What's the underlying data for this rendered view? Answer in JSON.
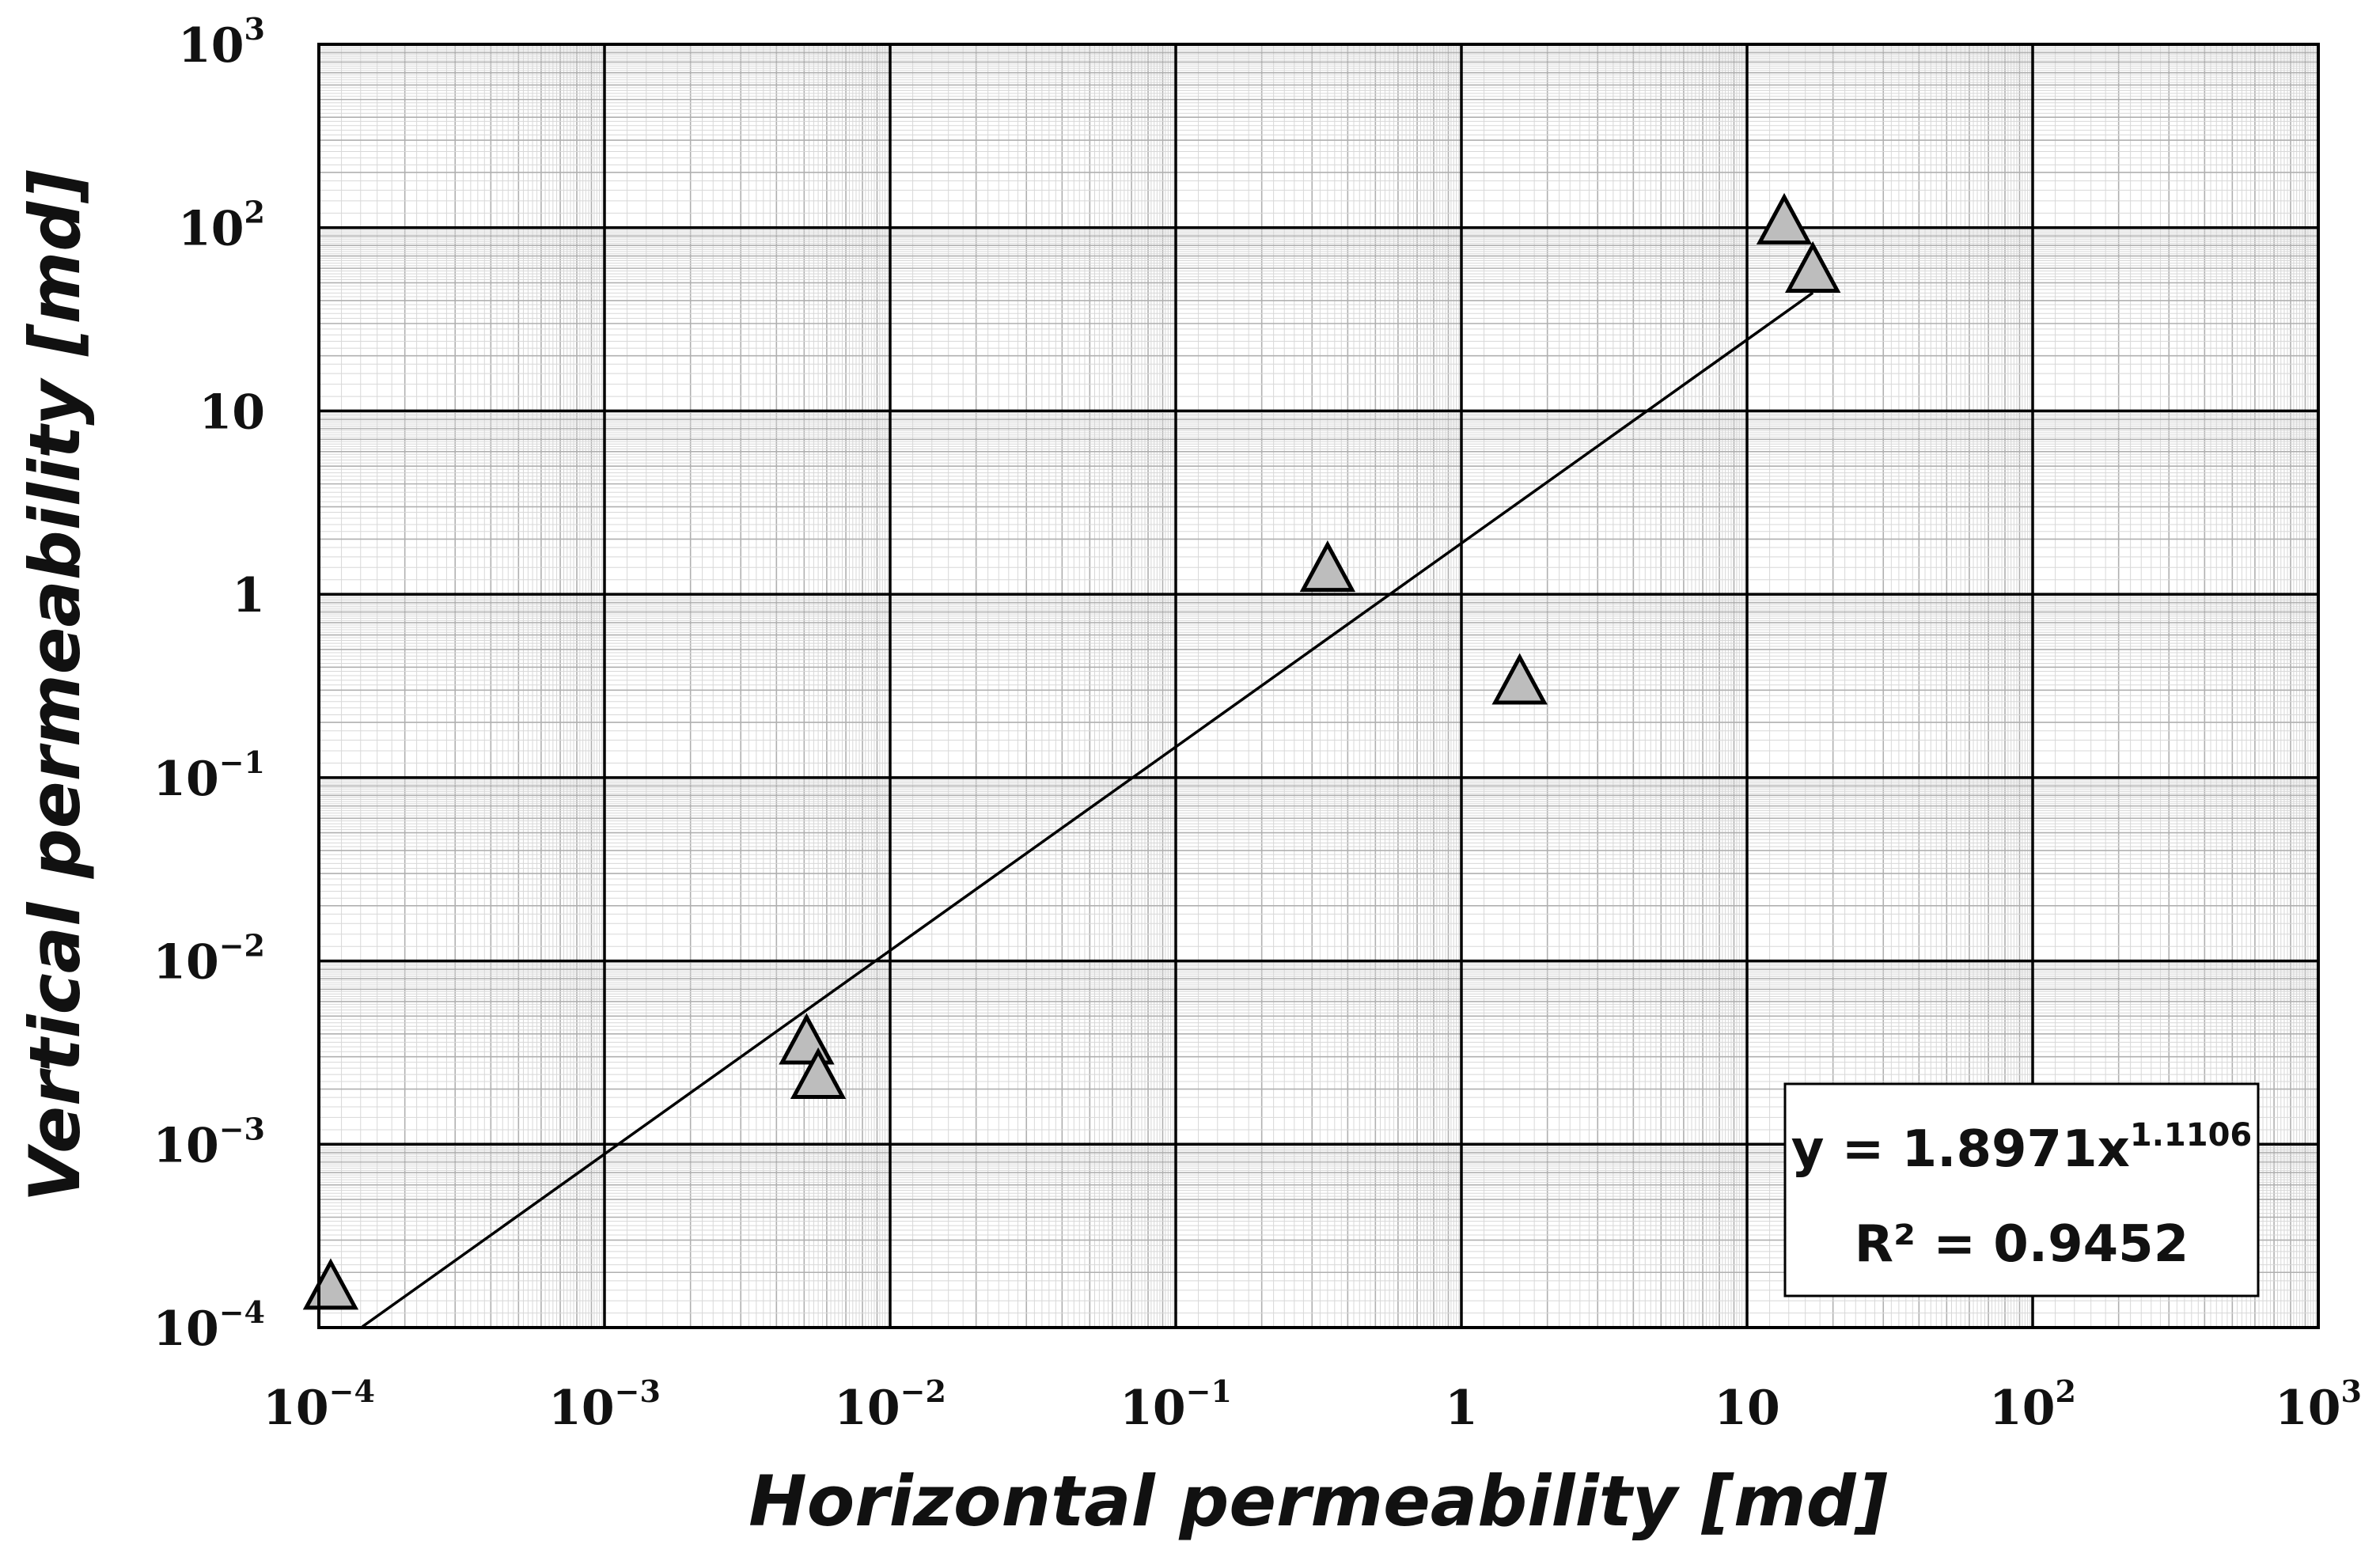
{
  "chart_data": {
    "type": "scatter",
    "title": "",
    "xlabel": "Horizontal permeability [md]",
    "ylabel": "Vertical permeability [md]",
    "xscale": "log",
    "yscale": "log",
    "xlim": [
      0.0001,
      1000
    ],
    "ylim": [
      0.0001,
      1000
    ],
    "grid": "major and minor",
    "x_tick_labels": [
      {
        "base": "10",
        "exp": "−4"
      },
      {
        "base": "10",
        "exp": "−3"
      },
      {
        "base": "10",
        "exp": "−2"
      },
      {
        "base": "10",
        "exp": "−1"
      },
      {
        "base": "1",
        "exp": ""
      },
      {
        "base": "10",
        "exp": ""
      },
      {
        "base": "10",
        "exp": "2"
      },
      {
        "base": "10",
        "exp": "3"
      }
    ],
    "y_tick_labels": [
      {
        "base": "10",
        "exp": "−4"
      },
      {
        "base": "10",
        "exp": "−3"
      },
      {
        "base": "10",
        "exp": "−2"
      },
      {
        "base": "10",
        "exp": "−1"
      },
      {
        "base": "1",
        "exp": ""
      },
      {
        "base": "10",
        "exp": ""
      },
      {
        "base": "10",
        "exp": "2"
      },
      {
        "base": "10",
        "exp": "3"
      }
    ],
    "series": [
      {
        "marker": "triangle",
        "color": "#bdbdbd",
        "points": [
          {
            "x": 0.00011,
            "y": 0.00017
          },
          {
            "x": 0.0051,
            "y": 0.0037
          },
          {
            "x": 0.0056,
            "y": 0.0024
          },
          {
            "x": 0.34,
            "y": 1.4
          },
          {
            "x": 1.6,
            "y": 0.34
          },
          {
            "x": 13.5,
            "y": 110
          },
          {
            "x": 17,
            "y": 60
          }
        ]
      }
    ],
    "trendline": {
      "type": "power",
      "coefficient": 1.8971,
      "exponent": 1.1106,
      "x_range": [
        0.000142,
        17
      ],
      "color": "#000000"
    },
    "annotation": {
      "equation_prefix": "y = 1.8971x",
      "equation_exponent": "1.1106",
      "r_squared": "R² = 0.9452",
      "position": "bottom-right"
    }
  }
}
